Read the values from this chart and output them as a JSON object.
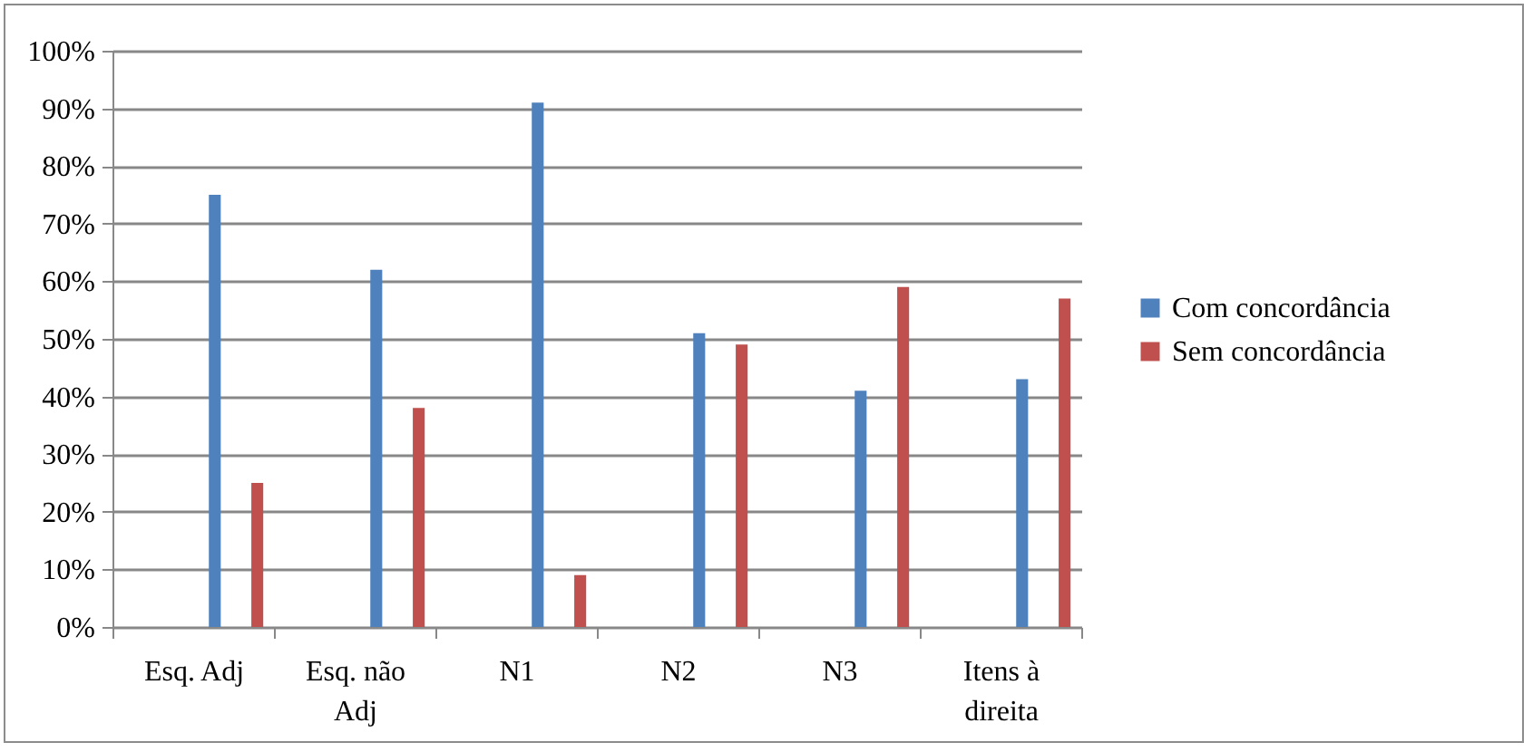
{
  "chart_data": {
    "type": "bar",
    "categories": [
      "Esq. Adj",
      "Esq. não Adj",
      "N1",
      "N2",
      "N3",
      "Itens à direita"
    ],
    "series": [
      {
        "name": "Com concordância",
        "color": "#4f81bd",
        "values": [
          75,
          62,
          91,
          51,
          41,
          43
        ]
      },
      {
        "name": "Sem concordância",
        "color": "#c0504d",
        "values": [
          25,
          38,
          9,
          49,
          59,
          57
        ]
      }
    ],
    "ylim": [
      0,
      100
    ],
    "yticks": [
      {
        "value": 0,
        "label": "0%"
      },
      {
        "value": 10,
        "label": "10%"
      },
      {
        "value": 20,
        "label": "20%"
      },
      {
        "value": 30,
        "label": "30%"
      },
      {
        "value": 40,
        "label": "40%"
      },
      {
        "value": 50,
        "label": "50%"
      },
      {
        "value": 60,
        "label": "60%"
      },
      {
        "value": 70,
        "label": "70%"
      },
      {
        "value": 80,
        "label": "80%"
      },
      {
        "value": 90,
        "label": "90%"
      },
      {
        "value": 100,
        "label": "100%"
      }
    ],
    "grid": "y",
    "legend": "right"
  }
}
